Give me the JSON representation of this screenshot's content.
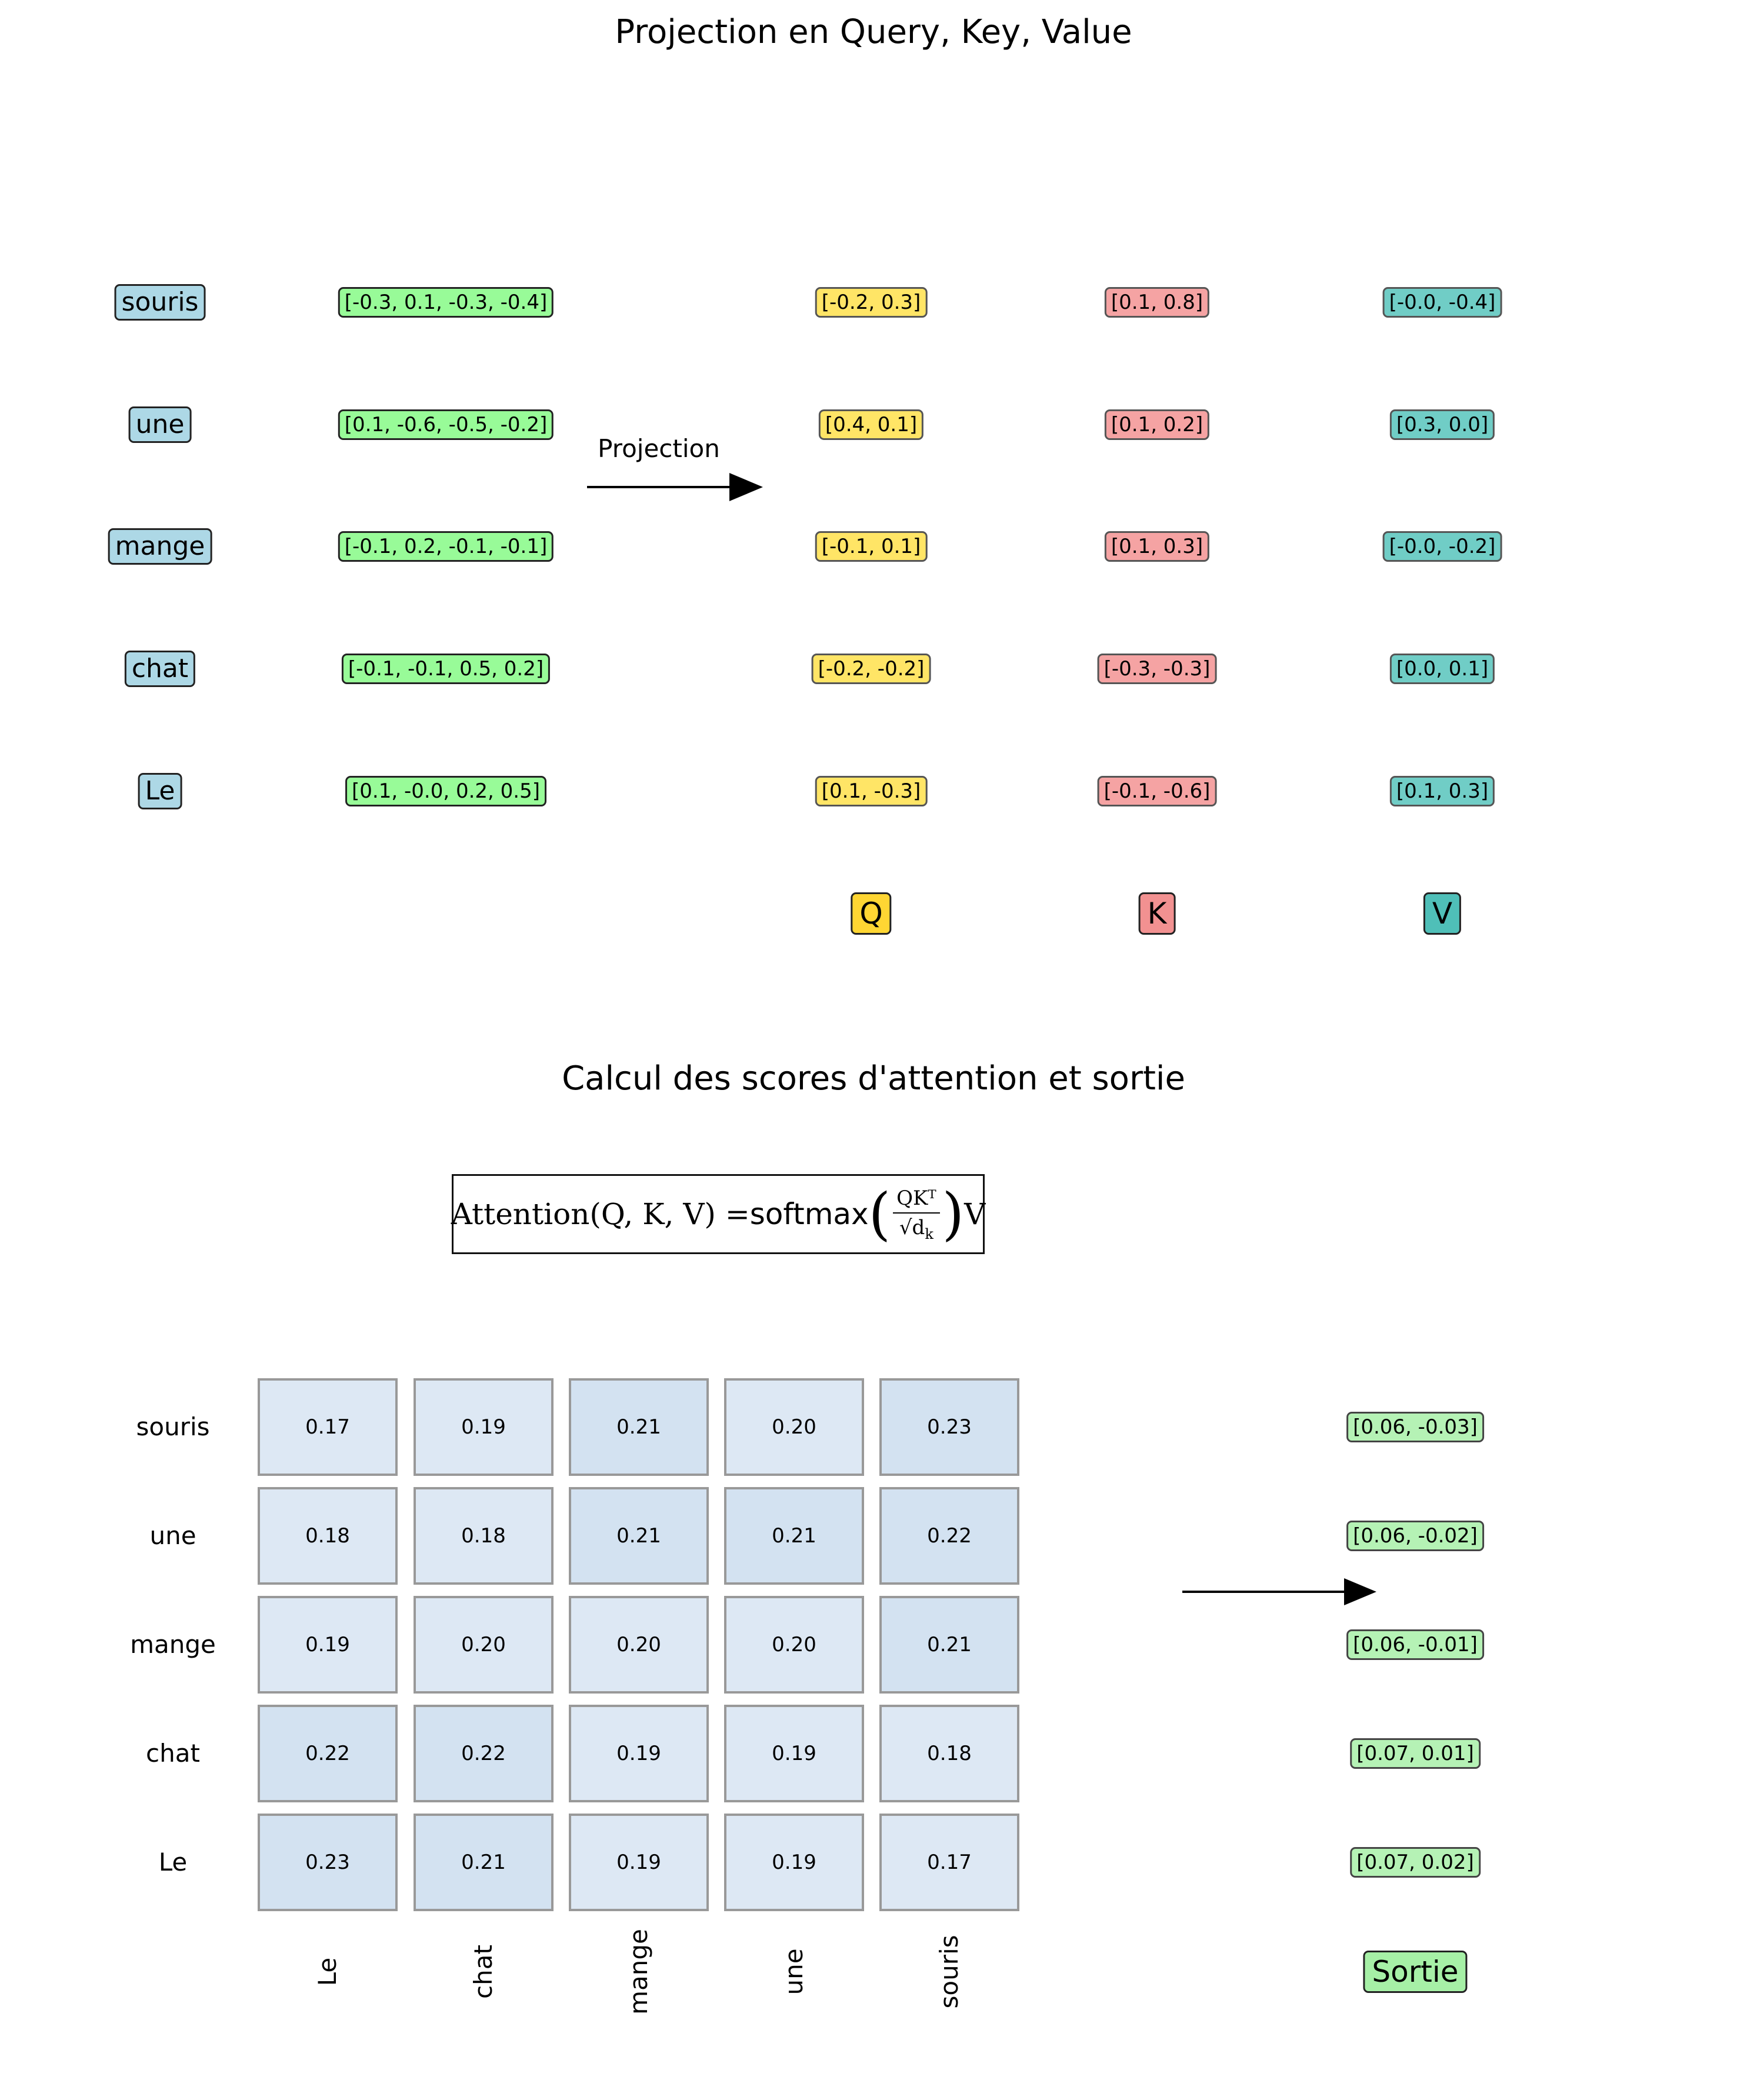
{
  "section1": {
    "title": "Projection en Query, Key, Value",
    "arrow_label": "Projection",
    "rows": [
      {
        "word": "souris",
        "emb": "[-0.3, 0.1, -0.3, -0.4]",
        "q": "[-0.2, 0.3]",
        "k": "[0.1, 0.8]",
        "v": "[-0.0, -0.4]"
      },
      {
        "word": "une",
        "emb": "[0.1, -0.6, -0.5, -0.2]",
        "q": "[0.4, 0.1]",
        "k": "[0.1, 0.2]",
        "v": "[0.3, 0.0]"
      },
      {
        "word": "mange",
        "emb": "[-0.1, 0.2, -0.1, -0.1]",
        "q": "[-0.1, 0.1]",
        "k": "[0.1, 0.3]",
        "v": "[-0.0, -0.2]"
      },
      {
        "word": "chat",
        "emb": "[-0.1, -0.1, 0.5, 0.2]",
        "q": "[-0.2, -0.2]",
        "k": "[-0.3, -0.3]",
        "v": "[0.0, 0.1]"
      },
      {
        "word": "Le",
        "emb": "[0.1, -0.0, 0.2, 0.5]",
        "q": "[0.1, -0.3]",
        "k": "[-0.1, -0.6]",
        "v": "[0.1, 0.3]"
      }
    ],
    "headers": {
      "q": "Q",
      "k": "K",
      "v": "V"
    },
    "colors": {
      "word": "#add8e6",
      "emb": "#98fb98",
      "q": "#ffe566",
      "k": "#f5a3a3",
      "v": "#70cdc6",
      "q_header": "#ffd633",
      "k_header": "#f29191",
      "v_header": "#4fbfb8"
    }
  },
  "section2": {
    "title": "Calcul des scores d'attention et sortie",
    "formula": {
      "lhs": "Attention(Q, K, V) = ",
      "fn": "softmax",
      "numerator": "QKᵀ",
      "denominator": "√d",
      "denominator_sub": "k",
      "tail": "V"
    },
    "row_labels": [
      "souris",
      "une",
      "mange",
      "chat",
      "Le"
    ],
    "col_labels": [
      "Le",
      "chat",
      "mange",
      "une",
      "souris"
    ],
    "matrix": [
      [
        "0.17",
        "0.19",
        "0.21",
        "0.20",
        "0.23"
      ],
      [
        "0.18",
        "0.18",
        "0.21",
        "0.21",
        "0.22"
      ],
      [
        "0.19",
        "0.20",
        "0.20",
        "0.20",
        "0.21"
      ],
      [
        "0.22",
        "0.22",
        "0.19",
        "0.19",
        "0.18"
      ],
      [
        "0.23",
        "0.21",
        "0.19",
        "0.19",
        "0.17"
      ]
    ],
    "outputs": [
      "[0.06, -0.03]",
      "[0.06, -0.02]",
      "[0.06, -0.01]",
      "[0.07, 0.01]",
      "[0.07, 0.02]"
    ],
    "output_header": "Sortie",
    "colors": {
      "cell_low": "#dde8f4",
      "cell_high": "#d3e2f1",
      "output": "#b5f2b5",
      "sortie": "#a6f0a6"
    }
  }
}
